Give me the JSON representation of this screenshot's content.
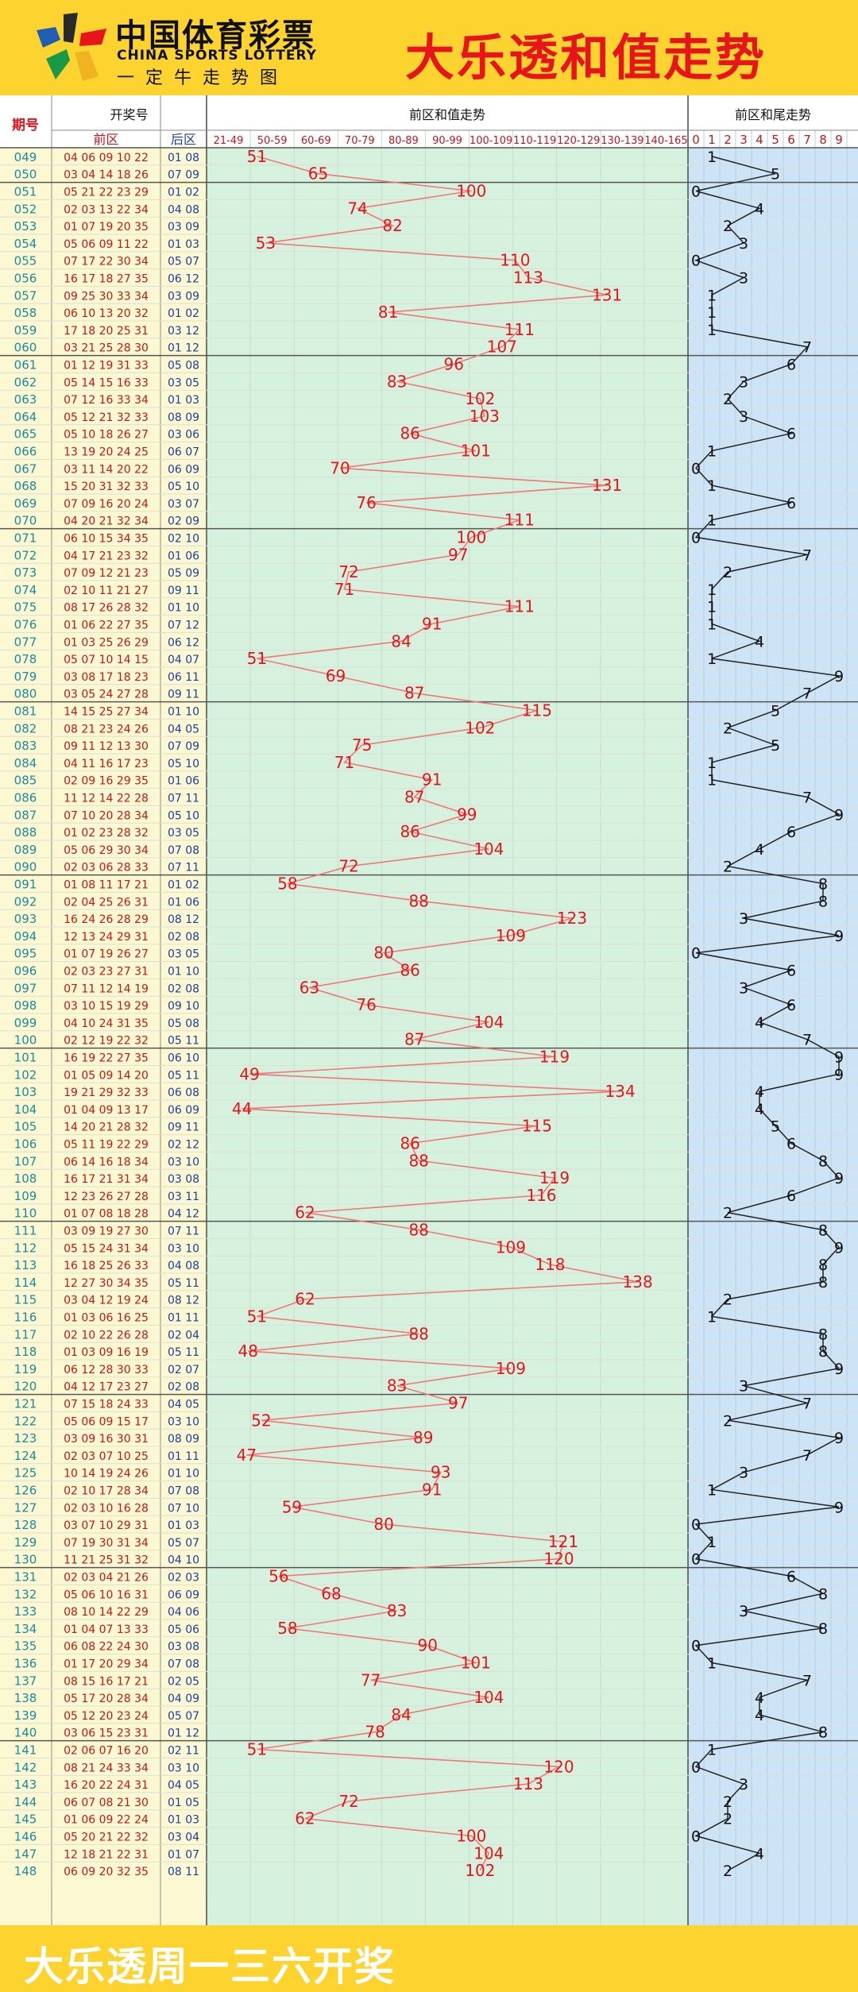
{
  "header": {
    "brand_cn": "中国体育彩票",
    "brand_en": "CHINA SPORTS LOTTERY",
    "brand_sub": "一定牛走势图",
    "title": "大乐透和值走势"
  },
  "footer": {
    "text": "大乐透周一三六开奖"
  },
  "table": {
    "col_issue": "期号",
    "col_draw": "开奖号",
    "col_front": "前区",
    "col_back": "后区",
    "col_sum": "前区和值走势",
    "col_tail": "前区和尾走势",
    "sum_ranges": [
      "21-49",
      "50-59",
      "60-69",
      "70-79",
      "80-89",
      "90-99",
      "100-109",
      "110-119",
      "120-129",
      "130-139",
      "140-165"
    ],
    "tail_digits": [
      "0",
      "1",
      "2",
      "3",
      "4",
      "5",
      "6",
      "7",
      "8",
      "9"
    ]
  },
  "colors": {
    "sum_line": "#f07878",
    "sum_text": "#e8141b",
    "tail_line": "#222222",
    "front_text": "#c8141b",
    "back_text": "#1a3ea8",
    "issue_text": "#1a8aa0"
  },
  "chart_data": {
    "type": "line",
    "title": "大乐透和值走势",
    "x": [
      "049",
      "050",
      "051",
      "052",
      "053",
      "054",
      "055",
      "056",
      "057",
      "058",
      "059",
      "060",
      "061",
      "062",
      "063",
      "064",
      "065",
      "066",
      "067",
      "068",
      "069",
      "070",
      "071",
      "072",
      "073",
      "074",
      "075",
      "076",
      "077",
      "078",
      "079",
      "080",
      "081",
      "082",
      "083",
      "084",
      "085",
      "086",
      "087",
      "088",
      "089",
      "090",
      "091",
      "092",
      "093",
      "094",
      "095",
      "096",
      "097",
      "098",
      "099",
      "100",
      "101",
      "102",
      "103",
      "104",
      "105",
      "106",
      "107",
      "108",
      "109",
      "110",
      "111",
      "112",
      "113",
      "114",
      "115",
      "116",
      "117",
      "118",
      "119",
      "120",
      "121",
      "122",
      "123",
      "124",
      "125",
      "126",
      "127",
      "128",
      "129",
      "130",
      "131",
      "132",
      "133",
      "134",
      "135",
      "136",
      "137",
      "138",
      "139",
      "140",
      "141",
      "142",
      "143",
      "144",
      "145",
      "146",
      "147",
      "148"
    ],
    "front": [
      "04 06 09 10 22",
      "03 04 14 18 26",
      "05 21 22 23 29",
      "02 03 13 22 34",
      "01 07 19 20 35",
      "05 06 09 11 22",
      "07 17 22 30 34",
      "16 17 18 27 35",
      "09 25 30 33 34",
      "06 10 13 20 32",
      "17 18 20 25 31",
      "03 21 25 28 30",
      "01 12 19 31 33",
      "05 14 15 16 33",
      "07 12 16 33 34",
      "05 12 21 32 33",
      "05 10 18 26 27",
      "13 19 20 24 25",
      "03 11 14 20 22",
      "15 20 31 32 33",
      "07 09 16 20 24",
      "04 20 21 32 34",
      "06 10 15 34 35",
      "04 17 21 23 32",
      "07 09 12 21 23",
      "02 10 11 21 27",
      "08 17 26 28 32",
      "01 06 22 27 35",
      "01 03 25 26 29",
      "05 07 10 14 15",
      "03 08 17 18 23",
      "03 05 24 27 28",
      "14 15 25 27 34",
      "08 21 23 24 26",
      "09 11 12 13 30",
      "04 11 16 17 23",
      "02 09 16 29 35",
      "11 12 14 22 28",
      "07 10 20 28 34",
      "01 02 23 28 32",
      "05 06 29 30 34",
      "02 03 06 28 33",
      "01 08 11 17 21",
      "02 04 25 26 31",
      "16 24 26 28 29",
      "12 13 24 29 31",
      "01 07 19 26 27",
      "02 03 23 27 31",
      "07 11 12 14 19",
      "03 10 15 19 29",
      "04 10 24 31 35",
      "02 12 19 22 32",
      "16 19 22 27 35",
      "01 05 09 14 20",
      "19 21 29 32 33",
      "01 04 09 13 17",
      "14 20 21 28 32",
      "05 11 19 22 29",
      "06 14 16 18 34",
      "16 17 21 31 34",
      "12 23 26 27 28",
      "01 07 08 18 28",
      "03 09 19 27 30",
      "05 15 24 31 34",
      "16 18 25 26 33",
      "12 27 30 34 35",
      "03 04 12 19 24",
      "01 03 06 16 25",
      "02 10 22 26 28",
      "01 03 09 16 19",
      "06 12 28 30 33",
      "04 12 17 23 27",
      "07 15 18 24 33",
      "05 06 09 15 17",
      "03 09 16 30 31",
      "02 03 07 10 25",
      "10 14 19 24 26",
      "02 10 17 28 34",
      "02 03 10 16 28",
      "03 07 10 29 31",
      "07 19 30 31 34",
      "11 21 25 31 32",
      "02 03 04 21 26",
      "05 06 10 16 31",
      "08 10 14 22 29",
      "01 04 07 13 33",
      "06 08 22 24 30",
      "01 17 20 29 34",
      "08 15 16 17 21",
      "05 17 20 28 34",
      "05 12 20 23 24",
      "03 06 15 23 31",
      "02 06 07 16 20",
      "08 21 24 33 34",
      "16 20 22 24 31",
      "06 07 08 21 30",
      "01 06 09 22 24",
      "05 20 21 22 32",
      "12 18 21 22 31",
      "06 09 20 32 35"
    ],
    "back": [
      "01 08",
      "07 09",
      "01 02",
      "04 08",
      "03 09",
      "01 03",
      "05 07",
      "06 12",
      "03 09",
      "01 02",
      "03 12",
      "01 12",
      "05 08",
      "03 05",
      "01 03",
      "08 09",
      "03 06",
      "06 07",
      "06 09",
      "05 10",
      "03 07",
      "02 09",
      "02 10",
      "01 06",
      "05 09",
      "09 11",
      "01 10",
      "07 12",
      "06 12",
      "04 07",
      "06 11",
      "09 11",
      "01 10",
      "04 05",
      "07 09",
      "05 10",
      "01 06",
      "07 11",
      "05 10",
      "03 05",
      "07 08",
      "07 11",
      "01 02",
      "01 06",
      "08 12",
      "02 08",
      "03 05",
      "01 10",
      "02 08",
      "09 10",
      "05 08",
      "05 11",
      "06 10",
      "05 11",
      "06 08",
      "06 09",
      "09 11",
      "02 12",
      "03 10",
      "03 08",
      "03 11",
      "04 12",
      "07 11",
      "03 10",
      "04 08",
      "05 11",
      "08 12",
      "01 11",
      "02 04",
      "05 11",
      "02 07",
      "02 08",
      "04 05",
      "03 10",
      "08 09",
      "01 11",
      "01 10",
      "07 08",
      "07 10",
      "01 03",
      "05 07",
      "04 10",
      "02 03",
      "06 09",
      "04 06",
      "05 06",
      "03 08",
      "07 08",
      "02 05",
      "04 09",
      "05 07",
      "01 12",
      "02 11",
      "03 10",
      "04 05",
      "01 05",
      "01 03",
      "03 04",
      "01 07",
      "08 11"
    ],
    "series": [
      {
        "values": [
          51,
          65,
          100,
          74,
          82,
          53,
          110,
          113,
          131,
          81,
          111,
          107,
          96,
          83,
          102,
          103,
          86,
          101,
          70,
          131,
          76,
          111,
          100,
          97,
          72,
          71,
          111,
          91,
          84,
          51,
          69,
          87,
          115,
          102,
          75,
          71,
          91,
          87,
          99,
          86,
          104,
          72,
          58,
          88,
          123,
          109,
          80,
          86,
          63,
          76,
          104,
          87,
          119,
          49,
          134,
          44,
          115,
          86,
          88,
          119,
          116,
          62,
          88,
          109,
          118,
          138,
          62,
          51,
          88,
          48,
          109,
          83,
          97,
          52,
          89,
          47,
          93,
          91,
          59,
          80,
          121,
          120,
          56,
          68,
          83,
          58,
          90,
          101,
          77,
          104,
          84,
          78,
          51,
          120,
          113,
          72,
          62,
          100,
          104,
          102
        ]
      },
      {
        "values": [
          1,
          5,
          0,
          4,
          2,
          3,
          0,
          3,
          1,
          1,
          1,
          7,
          6,
          3,
          2,
          3,
          6,
          1,
          0,
          1,
          6,
          1,
          0,
          7,
          2,
          1,
          1,
          1,
          4,
          1,
          9,
          7,
          5,
          2,
          5,
          1,
          1,
          7,
          9,
          6,
          4,
          2,
          8,
          8,
          3,
          9,
          0,
          6,
          3,
          6,
          4,
          7,
          9,
          9,
          4,
          4,
          5,
          6,
          8,
          9,
          6,
          2,
          8,
          9,
          8,
          8,
          2,
          1,
          8,
          8,
          9,
          3,
          7,
          2,
          9,
          7,
          3,
          1,
          9,
          0,
          1,
          0,
          6,
          8,
          3,
          8,
          0,
          1,
          7,
          4,
          4,
          8,
          1,
          0,
          3,
          2,
          2,
          0,
          4,
          2
        ]
      }
    ]
  }
}
